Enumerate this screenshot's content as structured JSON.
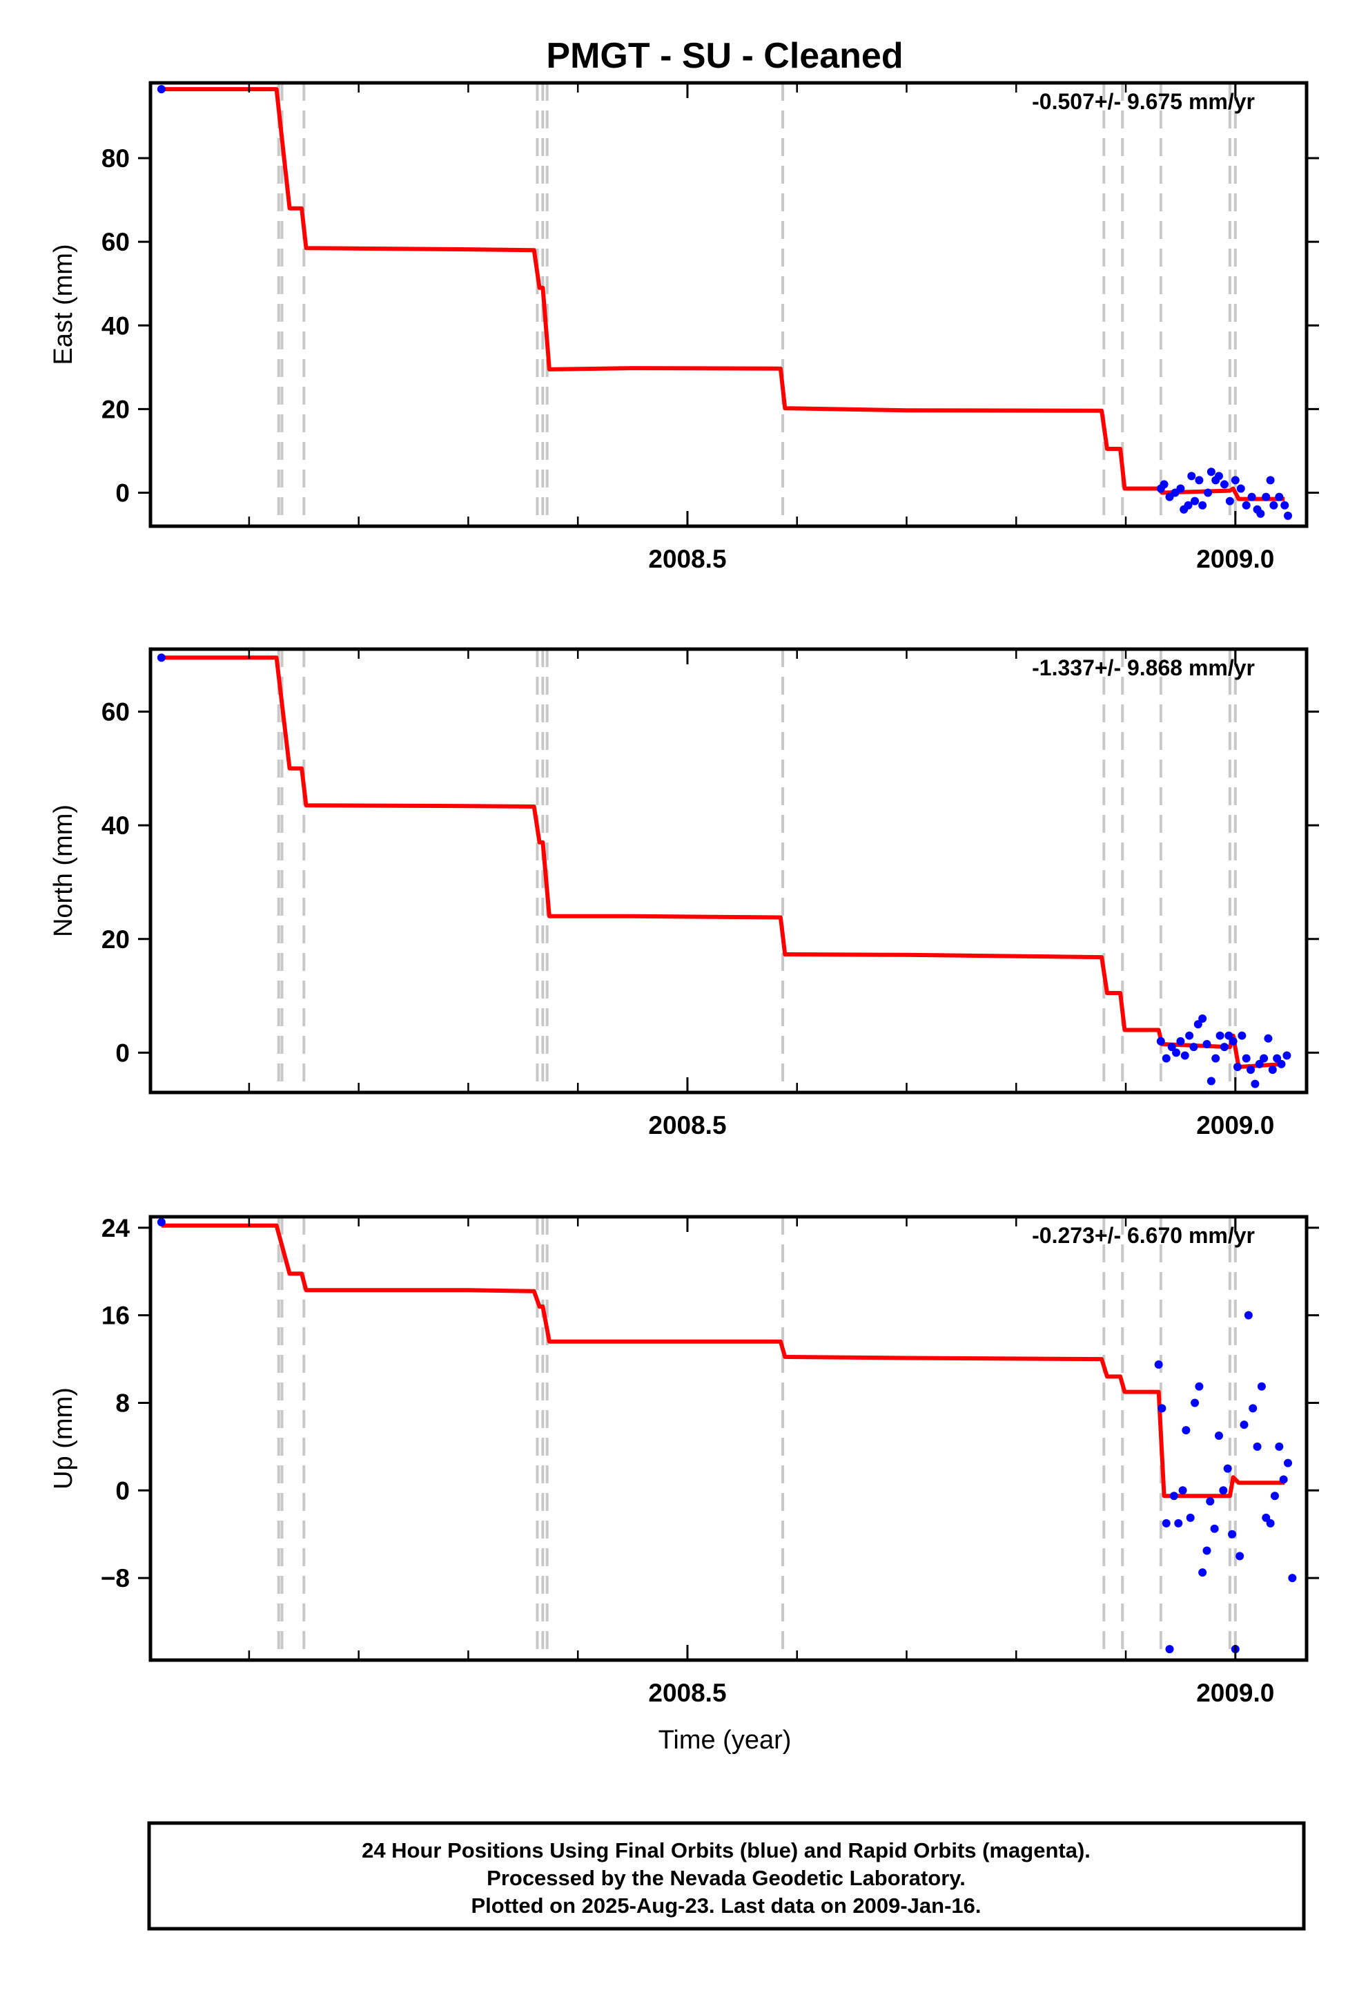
{
  "title": "PMGT  - SU - Cleaned",
  "xlabel": "Time (year)",
  "footer": [
    "24 Hour Positions Using Final Orbits (blue) and Rapid Orbits (magenta).",
    "Processed by the Nevada Geodetic Laboratory.",
    "Plotted on 2025-Aug-23. Last data on 2009-Jan-16."
  ],
  "colors": {
    "model": "#ff0000",
    "final": "#0000ff",
    "rapid": "#ff00ff",
    "breaks": "#c8c8c8",
    "frame": "#000000"
  },
  "x_axis": {
    "range": [
      2008.01,
      2009.065
    ],
    "tick_values": [
      2008.5,
      2009.0
    ],
    "tick_labels": [
      "2008.5",
      "2009.0"
    ],
    "minor_step": 0.1
  },
  "breaks": [
    2008.127,
    2008.13,
    2008.15,
    2008.363,
    2008.368,
    2008.372,
    2008.587,
    2008.88,
    2008.897,
    2008.932,
    2008.995,
    2009.0
  ],
  "chart_data": [
    {
      "type": "line",
      "panel": "east",
      "ylabel": "East (mm)",
      "rate_label": "-0.507+/- 9.675 mm/yr",
      "ylim": [
        -8,
        98
      ],
      "yticks": [
        0,
        20,
        40,
        60,
        80
      ],
      "model": [
        [
          2008.02,
          96.5
        ],
        [
          2008.125,
          96.5
        ],
        [
          2008.137,
          68
        ],
        [
          2008.148,
          68
        ],
        [
          2008.152,
          58.5
        ],
        [
          2008.3,
          58.2
        ],
        [
          2008.36,
          58
        ],
        [
          2008.365,
          49
        ],
        [
          2008.368,
          49
        ],
        [
          2008.374,
          29.5
        ],
        [
          2008.45,
          29.8
        ],
        [
          2008.585,
          29.7
        ],
        [
          2008.589,
          20.2
        ],
        [
          2008.7,
          19.7
        ],
        [
          2008.878,
          19.6
        ],
        [
          2008.883,
          10.5
        ],
        [
          2008.895,
          10.5
        ],
        [
          2008.899,
          1
        ],
        [
          2008.93,
          1
        ],
        [
          2008.933,
          0
        ],
        [
          2008.995,
          0.5
        ],
        [
          2008.998,
          1
        ],
        [
          2009.003,
          -1.5
        ],
        [
          2009.045,
          -1.5
        ]
      ],
      "final_points": [
        [
          2008.02,
          96.5
        ],
        [
          2008.932,
          1
        ],
        [
          2008.935,
          2
        ],
        [
          2008.94,
          -1
        ],
        [
          2008.945,
          0
        ],
        [
          2008.95,
          1
        ],
        [
          2008.953,
          -4
        ],
        [
          2008.957,
          -3
        ],
        [
          2008.96,
          4
        ],
        [
          2008.963,
          -2
        ],
        [
          2008.967,
          3
        ],
        [
          2008.97,
          -3
        ],
        [
          2008.975,
          0
        ],
        [
          2008.978,
          5
        ],
        [
          2008.982,
          3
        ],
        [
          2008.985,
          4
        ],
        [
          2008.99,
          2
        ],
        [
          2008.995,
          -2
        ],
        [
          2009.0,
          3
        ],
        [
          2009.005,
          1
        ],
        [
          2009.01,
          -3
        ],
        [
          2009.015,
          -1
        ],
        [
          2009.02,
          -4
        ],
        [
          2009.023,
          -5
        ],
        [
          2009.028,
          -1
        ],
        [
          2009.032,
          3
        ],
        [
          2009.035,
          -3
        ],
        [
          2009.04,
          -1
        ],
        [
          2009.045,
          -3
        ],
        [
          2009.048,
          -5.5
        ]
      ]
    },
    {
      "type": "line",
      "panel": "north",
      "ylabel": "North (mm)",
      "rate_label": "-1.337+/- 9.868 mm/yr",
      "ylim": [
        -7,
        71
      ],
      "yticks": [
        0,
        20,
        40,
        60
      ],
      "model": [
        [
          2008.02,
          69.5
        ],
        [
          2008.125,
          69.5
        ],
        [
          2008.137,
          50
        ],
        [
          2008.148,
          50
        ],
        [
          2008.152,
          43.5
        ],
        [
          2008.3,
          43.4
        ],
        [
          2008.36,
          43.3
        ],
        [
          2008.365,
          37
        ],
        [
          2008.368,
          37
        ],
        [
          2008.374,
          24
        ],
        [
          2008.45,
          24
        ],
        [
          2008.585,
          23.8
        ],
        [
          2008.589,
          17.3
        ],
        [
          2008.7,
          17.2
        ],
        [
          2008.878,
          16.8
        ],
        [
          2008.883,
          10.5
        ],
        [
          2008.895,
          10.5
        ],
        [
          2008.899,
          4
        ],
        [
          2008.93,
          4
        ],
        [
          2008.933,
          1.5
        ],
        [
          2008.995,
          1
        ],
        [
          2008.998,
          3
        ],
        [
          2009.003,
          -2.5
        ],
        [
          2009.045,
          -2
        ]
      ],
      "final_points": [
        [
          2008.02,
          69.5
        ],
        [
          2008.932,
          2
        ],
        [
          2008.937,
          -1
        ],
        [
          2008.942,
          1
        ],
        [
          2008.946,
          0
        ],
        [
          2008.95,
          2
        ],
        [
          2008.954,
          -0.5
        ],
        [
          2008.958,
          3
        ],
        [
          2008.962,
          1
        ],
        [
          2008.966,
          5
        ],
        [
          2008.97,
          6
        ],
        [
          2008.974,
          1.5
        ],
        [
          2008.978,
          -5
        ],
        [
          2008.982,
          -1
        ],
        [
          2008.986,
          3
        ],
        [
          2008.99,
          1
        ],
        [
          2008.994,
          3
        ],
        [
          2008.998,
          2
        ],
        [
          2009.002,
          -2.5
        ],
        [
          2009.006,
          3
        ],
        [
          2009.01,
          -1
        ],
        [
          2009.014,
          -3
        ],
        [
          2009.018,
          -5.5
        ],
        [
          2009.022,
          -2
        ],
        [
          2009.026,
          -1
        ],
        [
          2009.03,
          2.5
        ],
        [
          2009.034,
          -3
        ],
        [
          2009.038,
          -1
        ],
        [
          2009.042,
          -2
        ],
        [
          2009.047,
          -0.5
        ]
      ]
    },
    {
      "type": "line",
      "panel": "up",
      "ylabel": "Up (mm)",
      "rate_label": "-0.273+/- 6.670 mm/yr",
      "ylim": [
        -15.5,
        25
      ],
      "yticks": [
        -8,
        0,
        8,
        16,
        24
      ],
      "model": [
        [
          2008.02,
          24.2
        ],
        [
          2008.125,
          24.2
        ],
        [
          2008.137,
          19.8
        ],
        [
          2008.148,
          19.8
        ],
        [
          2008.152,
          18.3
        ],
        [
          2008.3,
          18.3
        ],
        [
          2008.36,
          18.2
        ],
        [
          2008.365,
          16.8
        ],
        [
          2008.368,
          16.8
        ],
        [
          2008.374,
          13.6
        ],
        [
          2008.45,
          13.6
        ],
        [
          2008.585,
          13.6
        ],
        [
          2008.589,
          12.2
        ],
        [
          2008.7,
          12.1
        ],
        [
          2008.878,
          12
        ],
        [
          2008.883,
          10.4
        ],
        [
          2008.895,
          10.4
        ],
        [
          2008.899,
          9
        ],
        [
          2008.93,
          9
        ],
        [
          2008.935,
          -0.5
        ],
        [
          2008.995,
          -0.5
        ],
        [
          2008.998,
          1.2
        ],
        [
          2009.003,
          0.7
        ],
        [
          2009.045,
          0.7
        ]
      ],
      "final_points": [
        [
          2008.02,
          24.5
        ],
        [
          2008.93,
          11.5
        ],
        [
          2008.933,
          7.5
        ],
        [
          2008.937,
          -3
        ],
        [
          2008.94,
          -14.5
        ],
        [
          2008.944,
          -0.5
        ],
        [
          2008.948,
          -3
        ],
        [
          2008.952,
          0
        ],
        [
          2008.955,
          5.5
        ],
        [
          2008.959,
          -2.5
        ],
        [
          2008.963,
          8
        ],
        [
          2008.967,
          9.5
        ],
        [
          2008.97,
          -7.5
        ],
        [
          2008.974,
          -5.5
        ],
        [
          2008.977,
          -1
        ],
        [
          2008.981,
          -3.5
        ],
        [
          2008.985,
          5
        ],
        [
          2008.989,
          0
        ],
        [
          2008.993,
          2
        ],
        [
          2008.997,
          -4
        ],
        [
          2009.0,
          -14.5
        ],
        [
          2009.004,
          -6
        ],
        [
          2009.008,
          6
        ],
        [
          2009.012,
          16
        ],
        [
          2009.016,
          7.5
        ],
        [
          2009.02,
          4
        ],
        [
          2009.024,
          9.5
        ],
        [
          2009.028,
          -2.5
        ],
        [
          2009.032,
          -3
        ],
        [
          2009.036,
          -0.5
        ],
        [
          2009.04,
          4
        ],
        [
          2009.044,
          1
        ],
        [
          2009.048,
          2.5
        ],
        [
          2009.052,
          -8
        ]
      ]
    }
  ]
}
